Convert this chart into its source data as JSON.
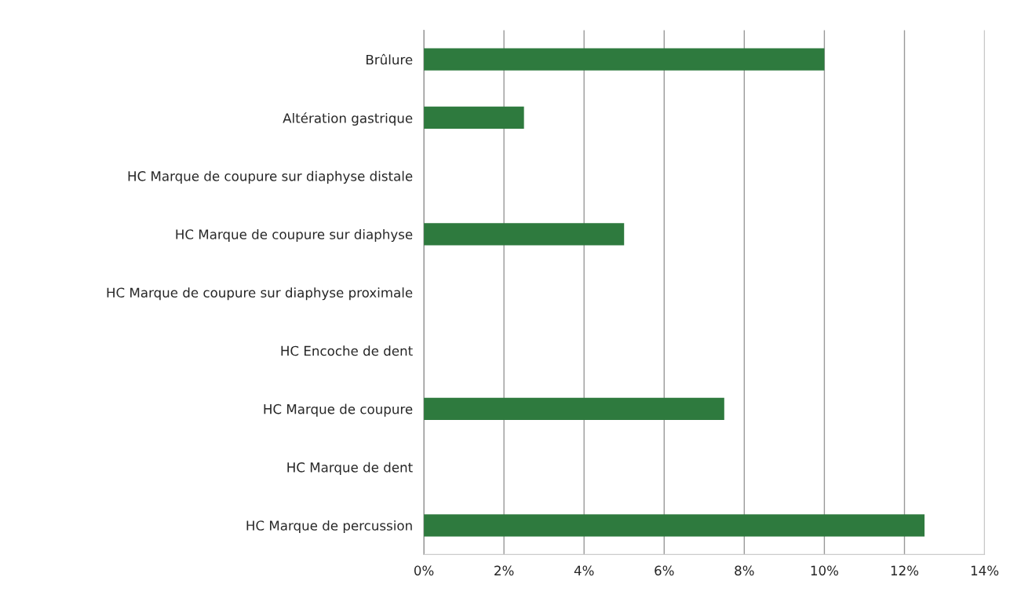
{
  "chart_data": {
    "type": "bar",
    "orientation": "horizontal",
    "categories": [
      "Brûlure",
      "Altération gastrique",
      "HC Marque de coupure sur diaphyse distale",
      "HC Marque de coupure sur diaphyse",
      "HC Marque de coupure sur diaphyse proximale",
      "HC Encoche de dent",
      "HC Marque de coupure",
      "HC Marque de dent",
      "HC Marque de percussion"
    ],
    "values": [
      10,
      2.5,
      0,
      5,
      0,
      0,
      7.5,
      0,
      12.5
    ],
    "color": "#2e7a3e",
    "xlim": [
      0,
      14
    ],
    "xticks": [
      {
        "value": 0,
        "label": "0%"
      },
      {
        "value": 2,
        "label": "2%"
      },
      {
        "value": 4,
        "label": "4%"
      },
      {
        "value": 6,
        "label": "6%"
      },
      {
        "value": 8,
        "label": "8%"
      },
      {
        "value": 10,
        "label": "10%"
      },
      {
        "value": 12,
        "label": "12%"
      },
      {
        "value": 14,
        "label": "14%"
      }
    ],
    "grid": "x"
  }
}
